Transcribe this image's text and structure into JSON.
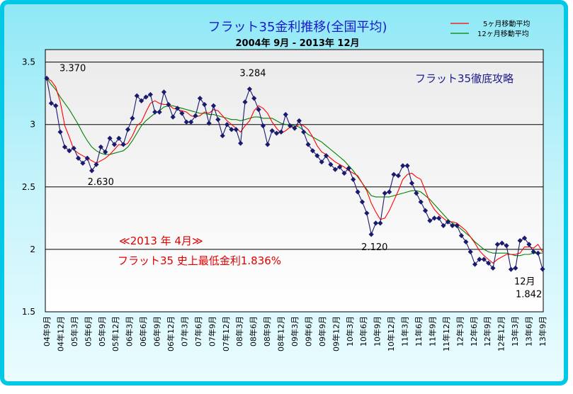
{
  "chart_data": {
    "type": "line",
    "title": "フラット35金利推移(全国平均)",
    "subtitle": "2004年 9月 - 2013年 12月",
    "brand_label": "フラット35徹底攻略",
    "ylim": [
      1.5,
      3.6
    ],
    "yticks": [
      "3.5",
      "3",
      "2.5",
      "2",
      "1.5"
    ],
    "ytick_values": [
      3.5,
      3.0,
      2.5,
      2.0,
      1.5
    ],
    "xticks": [
      "04年9月",
      "04年12月",
      "05年3月",
      "05年6月",
      "05年9月",
      "05年12月",
      "06年3月",
      "06年6月",
      "06年9月",
      "06年12月",
      "07年3月",
      "07年6月",
      "07年9月",
      "07年12月",
      "08年3月",
      "08年6月",
      "08年9月",
      "08年12月",
      "09年3月",
      "09年6月",
      "09年9月",
      "09年12月",
      "10年3月",
      "10年6月",
      "10年9月",
      "10年12月",
      "11年3月",
      "11年6月",
      "11年9月",
      "11年12月",
      "12年3月",
      "12年6月",
      "12年9月",
      "12年12月",
      "13年3月",
      "13年6月",
      "13年9月"
    ],
    "series": [
      {
        "name": "",
        "color": "#1a1a6e",
        "values": [
          3.37,
          3.17,
          3.15,
          2.94,
          2.82,
          2.79,
          2.81,
          2.73,
          2.69,
          2.73,
          2.63,
          2.68,
          2.82,
          2.78,
          2.89,
          2.84,
          2.89,
          2.84,
          2.96,
          3.05,
          3.23,
          3.19,
          3.22,
          3.24,
          3.1,
          3.1,
          3.26,
          3.16,
          3.06,
          3.13,
          3.09,
          3.02,
          3.02,
          3.07,
          3.21,
          3.16,
          3.01,
          3.15,
          3.04,
          2.91,
          3.0,
          2.96,
          2.96,
          2.85,
          3.18,
          3.284,
          3.21,
          3.12,
          2.99,
          2.84,
          2.95,
          2.93,
          2.94,
          3.08,
          2.99,
          2.97,
          3.03,
          2.94,
          2.84,
          2.79,
          2.75,
          2.7,
          2.75,
          2.68,
          2.64,
          2.66,
          2.61,
          2.65,
          2.56,
          2.46,
          2.38,
          2.29,
          2.12,
          2.21,
          2.21,
          2.45,
          2.46,
          2.6,
          2.59,
          2.67,
          2.67,
          2.53,
          2.45,
          2.38,
          2.31,
          2.23,
          2.25,
          2.25,
          2.19,
          2.22,
          2.19,
          2.19,
          2.11,
          2.06,
          1.98,
          1.88,
          1.92,
          1.92,
          1.89,
          1.85,
          2.04,
          2.05,
          2.03,
          1.84,
          1.85,
          2.07,
          2.09,
          2.04,
          1.98,
          1.97,
          1.842
        ]
      },
      {
        "name": "5ヶ月移動平均",
        "color": "#ff0000",
        "values": [
          3.37,
          3.35,
          3.3,
          3.18,
          2.99,
          2.9,
          2.8,
          2.77,
          2.75,
          2.73,
          2.71,
          2.69,
          2.71,
          2.73,
          2.76,
          2.8,
          2.84,
          2.83,
          2.85,
          2.91,
          2.99,
          3.02,
          3.1,
          3.17,
          3.19,
          3.17,
          3.16,
          3.16,
          3.13,
          3.12,
          3.11,
          3.1,
          3.07,
          3.06,
          3.07,
          3.1,
          3.09,
          3.12,
          3.11,
          3.07,
          3.03,
          3.0,
          2.97,
          2.94,
          2.99,
          3.03,
          3.11,
          3.15,
          3.13,
          3.09,
          3.02,
          2.97,
          2.93,
          2.95,
          2.98,
          2.98,
          3.0,
          2.99,
          2.96,
          2.9,
          2.83,
          2.78,
          2.76,
          2.73,
          2.7,
          2.68,
          2.66,
          2.63,
          2.61,
          2.59,
          2.53,
          2.47,
          2.37,
          2.3,
          2.24,
          2.25,
          2.31,
          2.39,
          2.47,
          2.56,
          2.6,
          2.61,
          2.58,
          2.56,
          2.47,
          2.38,
          2.32,
          2.28,
          2.25,
          2.22,
          2.22,
          2.21,
          2.18,
          2.15,
          2.1,
          2.05,
          1.99,
          1.95,
          1.92,
          1.89,
          1.92,
          1.94,
          1.96,
          1.96,
          1.96,
          1.97,
          2.02,
          2.02,
          2.01,
          2.04,
          1.98
        ]
      },
      {
        "name": "12ヶ月移動平均",
        "color": "#008000",
        "values": [
          3.37,
          3.32,
          3.28,
          3.22,
          3.17,
          3.12,
          3.06,
          3.0,
          2.93,
          2.87,
          2.82,
          2.79,
          2.77,
          2.76,
          2.76,
          2.77,
          2.78,
          2.79,
          2.82,
          2.87,
          2.93,
          2.99,
          3.03,
          3.06,
          3.09,
          3.11,
          3.14,
          3.15,
          3.15,
          3.14,
          3.13,
          3.12,
          3.11,
          3.1,
          3.09,
          3.09,
          3.08,
          3.08,
          3.07,
          3.06,
          3.05,
          3.04,
          3.04,
          3.03,
          3.04,
          3.05,
          3.06,
          3.06,
          3.05,
          3.05,
          3.05,
          3.03,
          3.01,
          3.0,
          3.0,
          2.99,
          2.98,
          2.95,
          2.92,
          2.9,
          2.88,
          2.86,
          2.83,
          2.8,
          2.77,
          2.74,
          2.71,
          2.67,
          2.63,
          2.58,
          2.53,
          2.48,
          2.43,
          2.42,
          2.42,
          2.42,
          2.42,
          2.43,
          2.44,
          2.45,
          2.46,
          2.47,
          2.47,
          2.46,
          2.43,
          2.4,
          2.36,
          2.32,
          2.28,
          2.24,
          2.21,
          2.19,
          2.16,
          2.13,
          2.1,
          2.06,
          2.03,
          2.0,
          1.98,
          1.97,
          1.97,
          1.97,
          1.97,
          1.96,
          1.95,
          1.95,
          1.96,
          1.96,
          1.97,
          1.97,
          1.97
        ]
      }
    ],
    "annotations": [
      {
        "text": "3.370",
        "index": 0
      },
      {
        "text": "2.630",
        "index": 10
      },
      {
        "text": "3.284",
        "index": 45
      },
      {
        "text": "2.120",
        "index": 72
      },
      {
        "text": "12月",
        "index": 110
      },
      {
        "text": "1.842",
        "index": 110
      }
    ],
    "callout": {
      "line1": "≪2013 年 4月≫",
      "line2": "フラット35 史上最低金利1.836%",
      "color": "#e00000"
    },
    "legend_placement": "top-right",
    "grid": "horizontal",
    "colors": {
      "frame": "#00c8e6",
      "title": "#1a1acd",
      "marker": "#1a1a6e"
    }
  }
}
